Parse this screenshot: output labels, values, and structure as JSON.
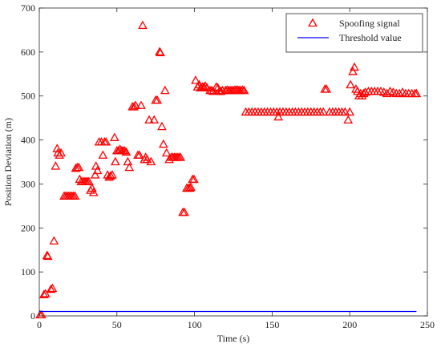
{
  "chart_data": {
    "type": "scatter",
    "xlabel": "Time (s)",
    "ylabel": "Position Deviation (m)",
    "xlim": [
      0,
      250
    ],
    "xticks": [
      0,
      50,
      100,
      150,
      200,
      250
    ],
    "ylim": [
      0,
      700
    ],
    "yticks": [
      0,
      100,
      200,
      300,
      400,
      500,
      600,
      700
    ],
    "legend": "upper right",
    "series": [
      {
        "name": "Spoofing signal",
        "color": "#ff0000",
        "marker": "triangle",
        "x": [
          0.5,
          1.5,
          3,
          4,
          5,
          5.5,
          7.5,
          8.5,
          9.5,
          10.5,
          11.5,
          12,
          13,
          14,
          16,
          17,
          18,
          19,
          20,
          21,
          22,
          23,
          23.5,
          24.5,
          25.5,
          26,
          27,
          28,
          29,
          30,
          31,
          32,
          33,
          34,
          35,
          36,
          36.5,
          37.5,
          38.5,
          40,
          41,
          42,
          43,
          44,
          45,
          46,
          47,
          48.5,
          49,
          50,
          51,
          52,
          53,
          54,
          55,
          56,
          57,
          58,
          60,
          61,
          62,
          63.5,
          64.5,
          65.6,
          66.6,
          67.7,
          68.5,
          69.5,
          70.8,
          72,
          74,
          75,
          76,
          77.5,
          78,
          79,
          80,
          81,
          82,
          83.7,
          85,
          86,
          87,
          88,
          89,
          90,
          91,
          92.5,
          93.5,
          95,
          96,
          97,
          97.6,
          98.7,
          99.7,
          100.7,
          102,
          103,
          104,
          105,
          106,
          107,
          108,
          110,
          111,
          112,
          114,
          115,
          116,
          117,
          118,
          120,
          121,
          122,
          123,
          124,
          125,
          126,
          127,
          128,
          129,
          130,
          131,
          132,
          133,
          135,
          137,
          139,
          141,
          143,
          145,
          147,
          149,
          151,
          153,
          154,
          155,
          157,
          159,
          161,
          163,
          165,
          167,
          169,
          171,
          173,
          175,
          177,
          179,
          181,
          183,
          184,
          185,
          187,
          189,
          191,
          193,
          195,
          197,
          199,
          200,
          200.5,
          202,
          203,
          204,
          205,
          206,
          207,
          208,
          209,
          210,
          212,
          214,
          216,
          218,
          220,
          222,
          224,
          226,
          228,
          230,
          232,
          234,
          236,
          238,
          240,
          242,
          243
        ],
        "values": [
          2,
          2,
          48,
          50,
          137,
          135,
          60,
          62,
          170,
          340,
          380,
          370,
          365,
          370,
          272,
          272,
          272,
          272,
          272,
          272,
          272,
          272,
          335,
          337,
          337,
          310,
          305,
          305,
          305,
          305,
          305,
          305,
          285,
          290,
          280,
          320,
          340,
          330,
          395,
          395,
          365,
          395,
          395,
          320,
          315,
          318,
          320,
          405,
          350,
          375,
          375,
          378,
          375,
          375,
          375,
          372,
          350,
          337,
          475,
          475,
          478,
          365,
          365,
          478,
          660,
          355,
          360,
          355,
          445,
          350,
          445,
          490,
          490,
          600,
          598,
          430,
          390,
          512,
          370,
          355,
          360,
          360,
          360,
          360,
          360,
          360,
          360,
          235,
          235,
          290,
          290,
          290,
          292,
          310,
          310,
          535,
          520,
          525,
          518,
          520,
          520,
          522,
          518,
          512,
          512,
          510,
          520,
          518,
          510,
          510,
          512,
          512,
          513,
          512,
          512,
          512,
          512,
          513,
          513,
          513,
          512,
          512,
          513,
          512,
          463,
          463,
          463,
          463,
          463,
          463,
          463,
          463,
          463,
          463,
          463,
          452,
          463,
          463,
          463,
          463,
          463,
          463,
          463,
          463,
          463,
          463,
          463,
          463,
          463,
          463,
          463,
          515,
          515,
          463,
          463,
          463,
          463,
          463,
          463,
          445,
          463,
          525,
          555,
          565,
          515,
          510,
          500,
          505,
          500,
          505,
          508,
          510,
          510,
          510,
          510,
          510,
          508,
          505,
          510,
          508,
          505,
          505,
          508,
          505,
          505,
          505,
          505,
          505
        ]
      },
      {
        "name": "Threshold value",
        "color": "#0000ff",
        "marker": "line",
        "x": [
          0,
          243
        ],
        "values": [
          10,
          10
        ]
      }
    ]
  }
}
